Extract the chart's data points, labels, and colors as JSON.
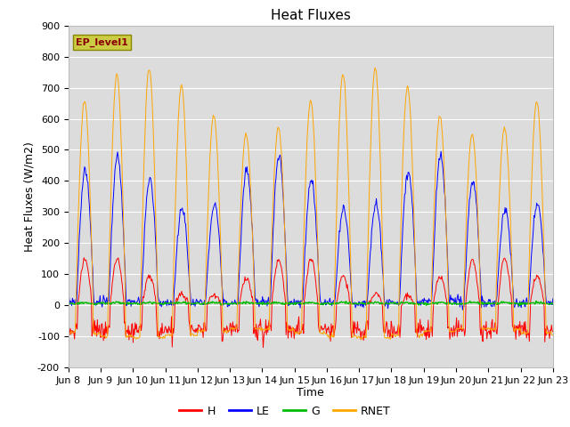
{
  "title": "Heat Fluxes",
  "xlabel": "Time",
  "ylabel": "Heat Fluxes (W/m2)",
  "ylim": [
    -200,
    900
  ],
  "yticks": [
    -200,
    -100,
    0,
    100,
    200,
    300,
    400,
    500,
    600,
    700,
    800,
    900
  ],
  "xtick_labels": [
    "Jun 8",
    "Jun 9",
    "Jun 10",
    "Jun 11",
    "Jun 12",
    "Jun 13",
    "Jun 14",
    "Jun 15",
    "Jun 16",
    "Jun 17",
    "Jun 18",
    "Jun 19",
    "Jun 20",
    "Jun 21",
    "Jun 22",
    "Jun 23"
  ],
  "legend_label": "EP_level1",
  "colors": {
    "H": "#ff0000",
    "LE": "#0000ff",
    "G": "#00bb00",
    "RNET": "#ffa500"
  },
  "plot_bg_color": "#dcdcdc",
  "title_fontsize": 11,
  "axis_fontsize": 9,
  "tick_fontsize": 8,
  "n_days": 15,
  "dt": 0.5
}
